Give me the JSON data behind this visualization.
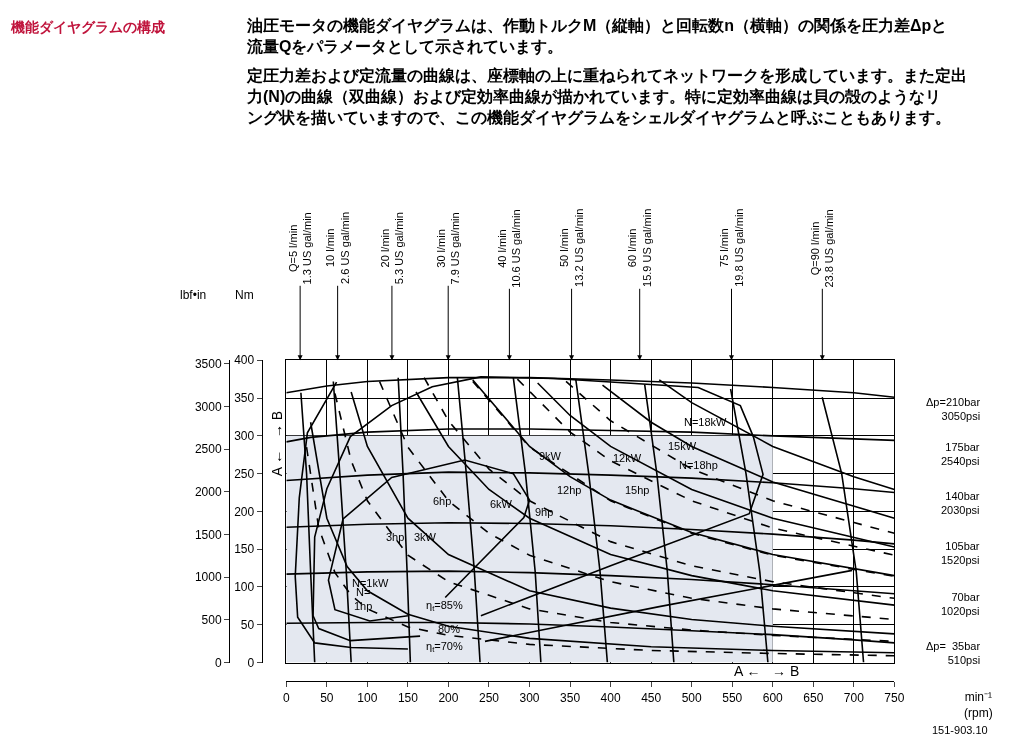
{
  "chart_data": {
    "type": "line",
    "title": "機能ダイヤグラムの構成",
    "subtitle": "油圧モータの機能ダイヤグラムは、作動トルクM（縦軸）と回転数n（横軸）の関係を圧力差Δpと流量Qをパラメータとして示されています。",
    "xlabel": "min⁻¹\n(rpm)",
    "ylabel": "Nm",
    "y2label": "lbf•in",
    "xlim": [
      0,
      750
    ],
    "xticks": [
      0,
      50,
      100,
      150,
      200,
      250,
      300,
      350,
      400,
      450,
      500,
      550,
      600,
      650,
      700,
      750
    ],
    "ylim": [
      0,
      400
    ],
    "yticks": [
      0,
      50,
      100,
      150,
      200,
      250,
      300,
      350,
      400
    ],
    "y2lim": [
      0,
      3540
    ],
    "y2ticks": [
      0,
      500,
      1000,
      1500,
      2000,
      2500,
      3000,
      3500
    ],
    "grid": true,
    "series": [
      {
        "type": "area",
        "color": "#e4e8f0",
        "x": [
          0,
          600
        ],
        "values": [
          300,
          300
        ]
      },
      {
        "color": "#000000",
        "x": [
          0,
          50,
          100,
          200,
          300,
          400,
          500,
          600,
          700,
          750
        ],
        "values": [
          357,
          366,
          372,
          377,
          377,
          374,
          370,
          364,
          357,
          351
        ]
      },
      {
        "color": "#000000",
        "x": [
          0,
          30,
          100,
          200,
          300,
          400,
          500,
          600,
          700,
          750
        ],
        "values": [
          292,
          298,
          305,
          309,
          309,
          307,
          305,
          300,
          296,
          294
        ]
      },
      {
        "color": "#000000",
        "x": [
          0,
          100,
          200,
          300,
          400,
          500,
          600,
          700,
          750
        ],
        "values": [
          241,
          248,
          252,
          251,
          248,
          244,
          238,
          230,
          225
        ]
      },
      {
        "color": "#000000",
        "x": [
          0,
          100,
          200,
          300,
          400,
          500,
          600,
          700,
          750
        ],
        "values": [
          179,
          183,
          185,
          184,
          181,
          176,
          170,
          162,
          157
        ]
      },
      {
        "color": "#000000",
        "x": [
          0,
          100,
          200,
          300,
          400,
          500,
          600,
          700,
          750
        ],
        "values": [
          117,
          120,
          121,
          119,
          115,
          110,
          103,
          95,
          91
        ]
      },
      {
        "color": "#000000",
        "x": [
          0,
          100,
          200,
          300,
          400,
          500,
          600,
          700,
          750
        ],
        "values": [
          52,
          53,
          53,
          51,
          47,
          42,
          37,
          30,
          26
        ]
      },
      {
        "color": "#000000",
        "x": [
          18,
          25,
          30,
          35
        ],
        "values": [
          357,
          250,
          120,
          0
        ]
      },
      {
        "color": "#000000",
        "x": [
          58,
          66,
          74,
          80
        ],
        "values": [
          372,
          250,
          120,
          0
        ]
      },
      {
        "color": "#000000",
        "x": [
          138,
          144,
          149,
          153
        ],
        "values": [
          377,
          250,
          120,
          0
        ]
      },
      {
        "color": "#000000",
        "x": [
          211,
          222,
          232,
          239
        ],
        "values": [
          377,
          250,
          120,
          0
        ]
      },
      {
        "color": "#000000",
        "x": [
          280,
          295,
          307,
          314
        ],
        "values": [
          377,
          250,
          120,
          0
        ]
      },
      {
        "color": "#000000",
        "x": [
          357,
          373,
          387,
          396
        ],
        "values": [
          375,
          250,
          120,
          0
        ]
      },
      {
        "color": "#000000",
        "x": [
          442,
          457,
          470,
          478
        ],
        "values": [
          368,
          250,
          120,
          0
        ]
      },
      {
        "color": "#000000",
        "x": [
          548,
          567,
          584,
          594
        ],
        "values": [
          362,
          250,
          120,
          0
        ]
      },
      {
        "color": "#000000",
        "x": [
          661,
          685,
          703,
          712
        ],
        "values": [
          351,
          250,
          120,
          0
        ]
      },
      {
        "color": "#000000",
        "x": [
          30,
          50,
          75,
          100,
          150,
          200,
          300,
          450,
          600,
          750
        ],
        "values": [
          318,
          191,
          127,
          95,
          64,
          48,
          32,
          21,
          16,
          13
        ]
      },
      {
        "color": "#000000",
        "x": [
          80,
          100,
          150,
          200,
          300,
          400,
          500,
          600,
          750
        ],
        "values": [
          358,
          286,
          191,
          143,
          95,
          72,
          57,
          48,
          38
        ]
      },
      {
        "color": "#000000",
        "x": [
          160,
          200,
          250,
          300,
          400,
          500,
          600,
          750
        ],
        "values": [
          358,
          286,
          229,
          191,
          143,
          115,
          95,
          76
        ]
      },
      {
        "color": "#000000",
        "x": [
          230,
          300,
          350,
          400,
          500,
          600,
          750
        ],
        "values": [
          374,
          286,
          246,
          215,
          172,
          143,
          115
        ]
      },
      {
        "color": "#000000",
        "x": [
          310,
          350,
          400,
          500,
          600,
          750
        ],
        "values": [
          370,
          327,
          286,
          229,
          191,
          153
        ]
      },
      {
        "color": "#000000",
        "x": [
          390,
          450,
          500,
          600,
          750
        ],
        "values": [
          367,
          318,
          286,
          239,
          191
        ]
      },
      {
        "color": "#000000",
        "x": [
          460,
          500,
          600,
          700,
          750
        ],
        "values": [
          374,
          344,
          286,
          246,
          229
        ]
      },
      {
        "color": "#000000",
        "line_style": "dashed",
        "x": [
          25,
          40,
          60,
          80,
          100,
          150,
          200,
          300,
          450,
          600,
          750
        ],
        "values": [
          285,
          178,
          119,
          89,
          71,
          47,
          36,
          24,
          16,
          12,
          9
        ]
      },
      {
        "color": "#000000",
        "line_style": "dashed",
        "x": [
          60,
          80,
          100,
          150,
          200,
          300,
          400,
          500,
          600,
          750
        ],
        "values": [
          356,
          267,
          214,
          142,
          107,
          71,
          53,
          43,
          36,
          28
        ]
      },
      {
        "color": "#000000",
        "line_style": "dashed",
        "x": [
          115,
          150,
          200,
          250,
          300,
          400,
          500,
          600,
          750
        ],
        "values": [
          372,
          285,
          214,
          171,
          142,
          107,
          85,
          71,
          57
        ]
      },
      {
        "color": "#000000",
        "line_style": "dashed",
        "x": [
          170,
          200,
          250,
          300,
          400,
          500,
          600,
          750
        ],
        "values": [
          377,
          320,
          256,
          214,
          160,
          128,
          107,
          85
        ]
      },
      {
        "color": "#000000",
        "line_style": "dashed",
        "x": [
          230,
          300,
          400,
          500,
          600,
          750
        ],
        "values": [
          372,
          285,
          214,
          171,
          142,
          114
        ]
      },
      {
        "color": "#000000",
        "line_style": "dashed",
        "x": [
          285,
          350,
          400,
          500,
          600,
          750
        ],
        "values": [
          375,
          305,
          267,
          214,
          178,
          142
        ]
      },
      {
        "color": "#000000",
        "line_style": "dashed",
        "x": [
          345,
          400,
          500,
          600,
          750
        ],
        "values": [
          372,
          320,
          256,
          214,
          171
        ]
      },
      {
        "color": "#000000",
        "x": [
          150,
          103,
          60,
          52,
          70,
          130,
          220,
          280,
          300,
          293,
          196
        ],
        "values": [
          62,
          55,
          70,
          109,
          190,
          245,
          268,
          250,
          215,
          192,
          86
        ]
      },
      {
        "color": "#000000",
        "x": [
          240,
          400,
          571,
          588,
          576,
          560,
          508,
          420,
          330,
          240,
          180,
          130,
          79,
          50,
          35,
          33,
          40,
          79,
          165
        ],
        "values": [
          62,
          128,
          197,
          249,
          299,
          340,
          364,
          370,
          376,
          378,
          365,
          340,
          299,
          230,
          166,
          62,
          45,
          29,
          35
        ]
      },
      {
        "color": "#000000",
        "x": [
          698,
          460,
          245,
          200,
          150,
          80,
          35,
          14,
          11,
          16,
          26,
          62
        ],
        "values": [
          122,
          74,
          28,
          null,
          18,
          20,
          26,
          60,
          114,
          218,
          304,
          371
        ]
      }
    ],
    "annotations": [
      "定圧力差および定流量の曲線は、座標軸の上に重ねられてネットワークを形成しています。また定出力(N)の曲線（双曲線）および定効率曲線が描かれています。特に定効率曲線は貝の殻のようなリング状を描いていますので、この機能ダイヤグラムをシェルダイヤグラムと呼ぶこともあります。",
      "151-903.10",
      "A ←   → B",
      "A ←   → B",
      "Q=5 l/min\n1.3 US gal/min",
      "10 l/min\n2.6 US gal/min",
      "20 l/min\n5.3 US gal/min",
      "30 l/min\n7.9 US gal/min",
      "40 l/min\n10.6 US gal/min",
      "50 l/min\n13.2 US gal/min",
      "60 l/min\n15.9 US gal/min",
      "75 l/min\n19.8 US gal/min",
      "Q=90 l/min\n23.8 US gal/min",
      "N=1kW",
      "N=\n1hp",
      "3hp",
      "3kW",
      "6hp",
      "6kW",
      "9hp",
      "9kW",
      "12hp",
      "12kW",
      "15hp",
      "15kW",
      "N=18hp",
      "N=18kW",
      "η$_{t}$=85%",
      "80%",
      "η$_{t}$=70%",
      "Δp=210bar\n3050psi",
      "175bar\n2540psi",
      "140bar\n2030psi",
      "105bar\n1520psi",
      "70bar\n1020psi",
      "Δp=  35bar\n510psi"
    ]
  }
}
